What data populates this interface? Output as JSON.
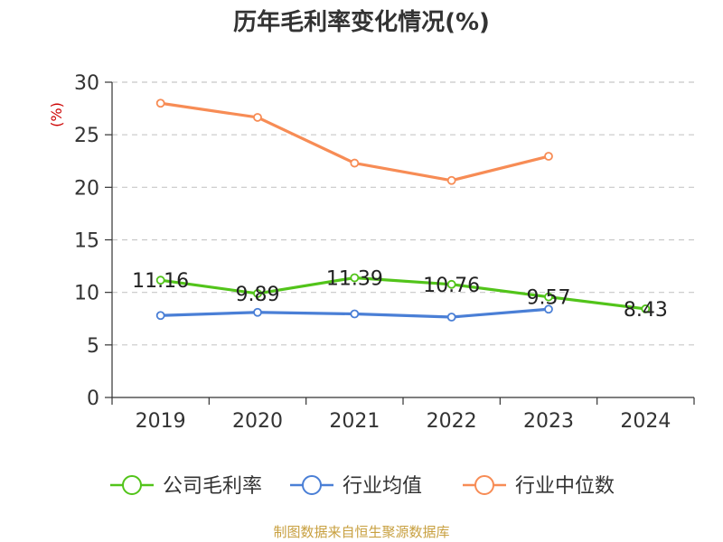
{
  "chart_data": {
    "type": "line",
    "title": "历年毛利率变化情况(%)",
    "ylabel": "(%)",
    "categories": [
      "2019",
      "2020",
      "2021",
      "2022",
      "2023",
      "2024"
    ],
    "ylim": [
      0,
      30
    ],
    "yticks": [
      "0",
      "5",
      "10",
      "15",
      "20",
      "25",
      "30"
    ],
    "grid": true,
    "legend_position": "bottom",
    "series": [
      {
        "name": "公司毛利率",
        "color": "#52c41a",
        "values": [
          11.16,
          9.89,
          11.39,
          10.76,
          9.57,
          8.43
        ],
        "labels": [
          "11.16",
          "9.89",
          "11.39",
          "10.76",
          "9.57",
          "8.43"
        ]
      },
      {
        "name": "行业均值",
        "color": "#4a7fd6",
        "values": [
          7.8,
          8.1,
          7.95,
          7.65,
          8.4,
          null
        ]
      },
      {
        "name": "行业中位数",
        "color": "#f78c55",
        "values": [
          28.0,
          26.65,
          22.3,
          20.65,
          22.95,
          null
        ]
      }
    ],
    "label_color": "#cc0000",
    "source": "制图数据来自恒生聚源数据库",
    "source_color": "#c8a040"
  }
}
